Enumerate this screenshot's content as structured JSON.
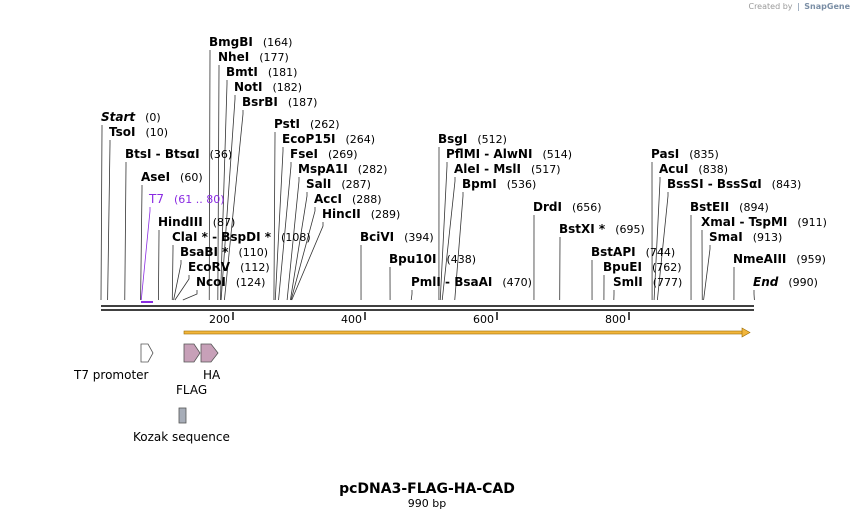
{
  "credit": {
    "prefix": "Created by",
    "brand": "SnapGene"
  },
  "plasmid": {
    "name": "pcDNA3-FLAG-HA-CAD",
    "length_label": "990 bp",
    "length_bp": 990
  },
  "sites": [
    {
      "name": "BmgBI",
      "pos": "(164)",
      "bp": 164
    },
    {
      "name": "NheI",
      "pos": "(177)",
      "bp": 177
    },
    {
      "name": "BmtI",
      "pos": "(181)",
      "bp": 181
    },
    {
      "name": "NotI",
      "pos": "(182)",
      "bp": 182
    },
    {
      "name": "BsrBI",
      "pos": "(187)",
      "bp": 187
    },
    {
      "name": "Start",
      "pos": "(0)",
      "bp": 0,
      "italic": true
    },
    {
      "name": "TsoI",
      "pos": "(10)",
      "bp": 10
    },
    {
      "name": "BtsI - BtsαI",
      "pos": "(36)",
      "bp": 36
    },
    {
      "name": "AseI",
      "pos": "(60)",
      "bp": 60
    },
    {
      "name": "T7",
      "pos": "(61 .. 80)",
      "bp": 61,
      "primer": true
    },
    {
      "name": "HindIII",
      "pos": "(87)",
      "bp": 87
    },
    {
      "name": "ClaI * - BspDI *",
      "pos": "(108)",
      "bp": 108
    },
    {
      "name": "BsaBI *",
      "pos": "(110)",
      "bp": 110
    },
    {
      "name": "EcoRV",
      "pos": "(112)",
      "bp": 112
    },
    {
      "name": "NcoI",
      "pos": "(124)",
      "bp": 124
    },
    {
      "name": "PstI",
      "pos": "(262)",
      "bp": 262
    },
    {
      "name": "EcoP15I",
      "pos": "(264)",
      "bp": 264
    },
    {
      "name": "FseI",
      "pos": "(269)",
      "bp": 269
    },
    {
      "name": "MspA1I",
      "pos": "(282)",
      "bp": 282
    },
    {
      "name": "SalI",
      "pos": "(287)",
      "bp": 287
    },
    {
      "name": "AccI",
      "pos": "(288)",
      "bp": 288
    },
    {
      "name": "HincII",
      "pos": "(289)",
      "bp": 289
    },
    {
      "name": "BciVI",
      "pos": "(394)",
      "bp": 394
    },
    {
      "name": "Bpu10I",
      "pos": "(438)",
      "bp": 438
    },
    {
      "name": "BsgI",
      "pos": "(512)",
      "bp": 512
    },
    {
      "name": "PflMI - AlwNI",
      "pos": "(514)",
      "bp": 514
    },
    {
      "name": "AleI - MslI",
      "pos": "(517)",
      "bp": 517
    },
    {
      "name": "BpmI",
      "pos": "(536)",
      "bp": 536
    },
    {
      "name": "PmlI - BsaAI",
      "pos": "(470)",
      "bp": 470
    },
    {
      "name": "DrdI",
      "pos": "(656)",
      "bp": 656
    },
    {
      "name": "BstXI *",
      "pos": "(695)",
      "bp": 695
    },
    {
      "name": "BstAPI",
      "pos": "(744)",
      "bp": 744
    },
    {
      "name": "BpuEI",
      "pos": "(762)",
      "bp": 762
    },
    {
      "name": "SmlI",
      "pos": "(777)",
      "bp": 777
    },
    {
      "name": "PasI",
      "pos": "(835)",
      "bp": 835
    },
    {
      "name": "AcuI",
      "pos": "(838)",
      "bp": 838
    },
    {
      "name": "BssSI - BssSαI",
      "pos": "(843)",
      "bp": 843
    },
    {
      "name": "BstEII",
      "pos": "(894)",
      "bp": 894
    },
    {
      "name": "XmaI - TspMI",
      "pos": "(911)",
      "bp": 911
    },
    {
      "name": "SmaI",
      "pos": "(913)",
      "bp": 913
    },
    {
      "name": "NmeAIII",
      "pos": "(959)",
      "bp": 959
    },
    {
      "name": "End",
      "pos": "(990)",
      "bp": 990,
      "italic": true
    }
  ],
  "ruler": {
    "ticks": [
      "200",
      "400",
      "600",
      "800"
    ]
  },
  "features": [
    {
      "name": "T7 promoter",
      "kind": "promoter",
      "color": "#ffffff"
    },
    {
      "name": "FLAG",
      "kind": "tag",
      "color": "#c7a0b8"
    },
    {
      "name": "HA",
      "kind": "tag",
      "color": "#c7a0b8"
    },
    {
      "name": "Kozak sequence",
      "kind": "misc",
      "color": "#a7adb8"
    }
  ],
  "colors": {
    "orf": "#f2b63c",
    "primer": "#8a2be2",
    "backbone": "#000000"
  }
}
